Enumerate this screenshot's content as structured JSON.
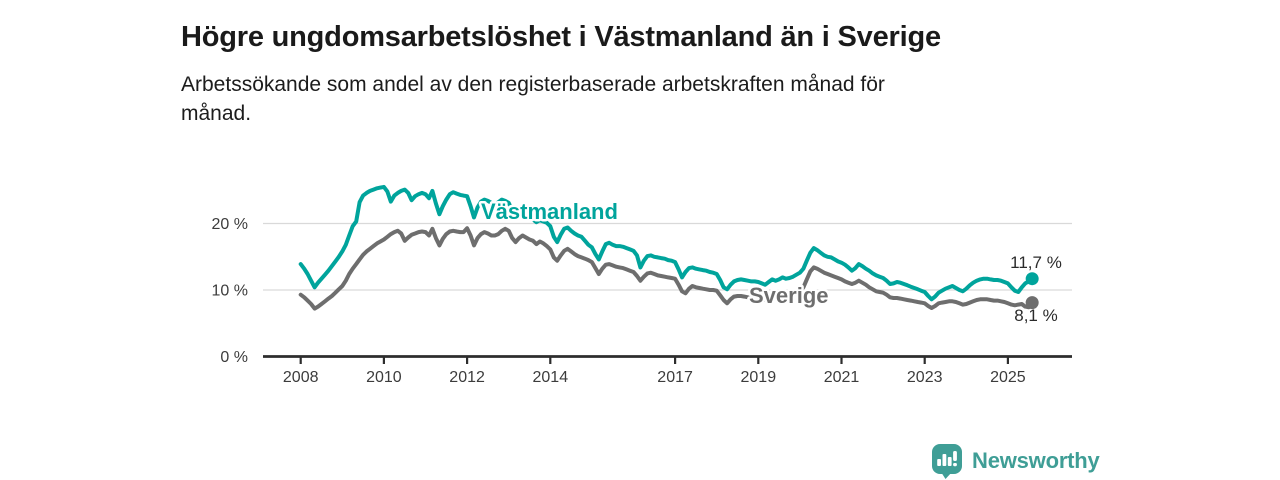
{
  "header": {
    "title": "Högre ungdomsarbetslöshet i Västmanland än i Sverige",
    "subtitle_lines": [
      "Arbetssökande som andel av den registerbaserade arbetskraften månad för",
      "månad."
    ]
  },
  "chart_data": {
    "type": "line",
    "title": "Högre ungdomsarbetslöshet i Västmanland än i Sverige",
    "xlabel": "",
    "ylabel": "",
    "unit": "%",
    "grid": "horizontal",
    "legend_position": "inline-labels",
    "ylim": [
      0,
      28
    ],
    "x_start_year": 2008,
    "x_start_month": 1,
    "x_step_months": 1,
    "xticks": [
      2008,
      2010,
      2012,
      2014,
      2017,
      2019,
      2021,
      2023,
      2025
    ],
    "ytick_values": [
      0,
      10,
      20
    ],
    "ytick_labels": [
      "0 %",
      "10 %",
      "20 %"
    ],
    "series": [
      {
        "id": "sverige",
        "name": "Sverige",
        "color": "#6e6e6e",
        "end_value_label": "8,1 %",
        "values": [
          9.3,
          8.9,
          8.4,
          7.9,
          7.2,
          7.5,
          7.9,
          8.3,
          8.7,
          9.1,
          9.6,
          10.1,
          10.6,
          11.4,
          12.4,
          13.2,
          13.9,
          14.6,
          15.3,
          15.8,
          16.2,
          16.6,
          17.0,
          17.3,
          17.6,
          18.0,
          18.4,
          18.7,
          18.9,
          18.5,
          17.4,
          17.9,
          18.3,
          18.5,
          18.7,
          18.8,
          18.7,
          18.2,
          19.2,
          17.8,
          16.7,
          17.7,
          18.4,
          18.8,
          18.9,
          18.8,
          18.7,
          18.7,
          19.3,
          18.2,
          16.7,
          17.8,
          18.4,
          18.7,
          18.5,
          18.2,
          18.2,
          18.4,
          18.9,
          19.2,
          18.9,
          17.8,
          17.2,
          17.8,
          18.2,
          17.9,
          17.6,
          17.4,
          16.9,
          17.3,
          17.0,
          16.6,
          16.1,
          14.9,
          14.4,
          15.2,
          15.9,
          16.2,
          15.8,
          15.4,
          15.1,
          14.9,
          14.7,
          14.5,
          14.2,
          13.3,
          12.4,
          13.2,
          13.8,
          13.9,
          13.7,
          13.5,
          13.4,
          13.3,
          13.1,
          12.9,
          12.7,
          12.1,
          11.4,
          12.0,
          12.5,
          12.6,
          12.4,
          12.2,
          12.1,
          12.0,
          11.9,
          11.8,
          11.7,
          10.8,
          9.8,
          9.5,
          10.2,
          10.6,
          10.4,
          10.3,
          10.2,
          10.1,
          10.0,
          10.0,
          9.9,
          9.2,
          8.5,
          8.0,
          8.6,
          9.0,
          9.1,
          9.1,
          9.0,
          8.9,
          8.8,
          8.8,
          8.8,
          8.6,
          8.5,
          8.8,
          9.0,
          8.9,
          9.0,
          9.1,
          9.0,
          9.1,
          9.3,
          9.5,
          9.8,
          10.4,
          11.6,
          12.8,
          13.4,
          13.2,
          12.9,
          12.6,
          12.4,
          12.2,
          12.0,
          11.8,
          11.6,
          11.3,
          11.1,
          10.9,
          11.1,
          11.4,
          11.1,
          10.8,
          10.4,
          10.1,
          9.8,
          9.7,
          9.6,
          9.3,
          8.9,
          8.8,
          8.8,
          8.7,
          8.6,
          8.5,
          8.4,
          8.3,
          8.2,
          8.1,
          8.0,
          7.6,
          7.3,
          7.6,
          8.0,
          8.1,
          8.2,
          8.3,
          8.3,
          8.2,
          8.0,
          7.8,
          7.9,
          8.1,
          8.3,
          8.5,
          8.6,
          8.6,
          8.6,
          8.5,
          8.4,
          8.4,
          8.3,
          8.2,
          8.0,
          7.8,
          7.7,
          7.8,
          7.9,
          7.5,
          7.4,
          8.1
        ]
      },
      {
        "id": "vastmanland",
        "name": "Västmanland",
        "color": "#00a49c",
        "end_value_label": "11,7 %",
        "values": [
          13.9,
          13.2,
          12.4,
          11.4,
          10.4,
          11.1,
          11.7,
          12.3,
          12.9,
          13.6,
          14.3,
          15.0,
          15.8,
          16.8,
          18.2,
          19.6,
          20.3,
          23.2,
          24.2,
          24.6,
          24.9,
          25.1,
          25.3,
          25.4,
          25.5,
          24.8,
          23.3,
          24.2,
          24.6,
          24.9,
          25.1,
          24.6,
          23.5,
          24.1,
          24.4,
          24.6,
          24.4,
          23.8,
          24.9,
          23.0,
          21.4,
          22.6,
          23.6,
          24.4,
          24.7,
          24.5,
          24.3,
          24.2,
          24.1,
          22.6,
          20.9,
          22.4,
          23.3,
          23.6,
          23.4,
          23.1,
          22.9,
          23.2,
          23.6,
          23.4,
          23.1,
          22.0,
          21.2,
          21.9,
          22.3,
          21.6,
          21.0,
          20.6,
          20.2,
          20.5,
          20.3,
          20.1,
          19.6,
          18.0,
          17.2,
          18.3,
          19.2,
          19.4,
          18.9,
          18.5,
          18.2,
          18.0,
          17.4,
          16.8,
          16.4,
          15.4,
          14.6,
          15.8,
          16.9,
          17.1,
          16.8,
          16.6,
          16.6,
          16.5,
          16.3,
          16.1,
          15.9,
          15.2,
          13.4,
          14.4,
          15.1,
          15.2,
          15.0,
          14.9,
          14.8,
          14.7,
          14.5,
          14.4,
          14.2,
          13.1,
          11.9,
          12.7,
          13.3,
          13.4,
          13.2,
          13.1,
          13.0,
          12.9,
          12.7,
          12.6,
          12.4,
          11.5,
          10.4,
          10.1,
          10.8,
          11.3,
          11.5,
          11.6,
          11.5,
          11.4,
          11.3,
          11.3,
          11.2,
          11.0,
          10.8,
          11.2,
          11.6,
          11.4,
          11.6,
          11.9,
          11.7,
          11.8,
          12.0,
          12.3,
          12.6,
          13.2,
          14.4,
          15.6,
          16.3,
          16.0,
          15.6,
          15.2,
          15.0,
          14.9,
          14.6,
          14.3,
          14.1,
          13.8,
          13.4,
          12.9,
          13.3,
          13.9,
          13.6,
          13.2,
          12.9,
          12.5,
          12.2,
          12.0,
          11.8,
          11.4,
          10.9,
          11.0,
          11.2,
          11.1,
          10.9,
          10.7,
          10.5,
          10.3,
          10.1,
          9.9,
          9.7,
          9.1,
          8.6,
          9.0,
          9.6,
          9.9,
          10.2,
          10.4,
          10.6,
          10.3,
          10.0,
          9.8,
          10.2,
          10.7,
          11.1,
          11.4,
          11.6,
          11.7,
          11.7,
          11.6,
          11.5,
          11.5,
          11.4,
          11.2,
          11.0,
          10.4,
          9.9,
          9.7,
          10.4,
          11.0,
          11.3,
          11.7
        ]
      }
    ],
    "colors": {
      "grid": "#d9d9d9",
      "axis": "#2d2d2d",
      "tick_text": "#3c3c3c",
      "value_text": "#2b2b2b"
    }
  },
  "footer": {
    "brand": "Newsworthy",
    "brand_color": "#3f9e96",
    "logo_icon": "bar-chart-speech-bubble-icon"
  }
}
